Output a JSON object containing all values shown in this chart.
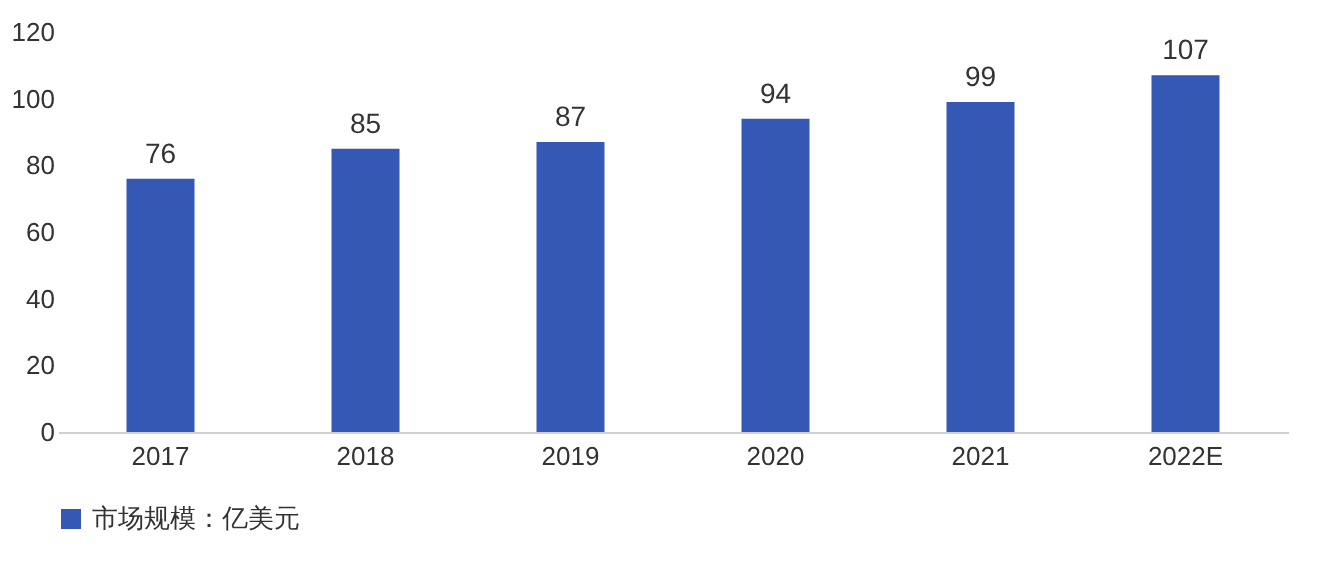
{
  "chart_data": {
    "type": "bar",
    "categories": [
      "2017",
      "2018",
      "2019",
      "2020",
      "2021",
      "2022E"
    ],
    "series": [
      {
        "name": "市场规模：亿美元",
        "color": "#3558b5",
        "values": [
          76,
          85,
          87,
          94,
          99,
          107
        ]
      }
    ],
    "ylim": [
      0,
      120
    ],
    "yticks": [
      0,
      20,
      40,
      60,
      80,
      100,
      120
    ],
    "data_labels": true,
    "legend": "bottom"
  }
}
